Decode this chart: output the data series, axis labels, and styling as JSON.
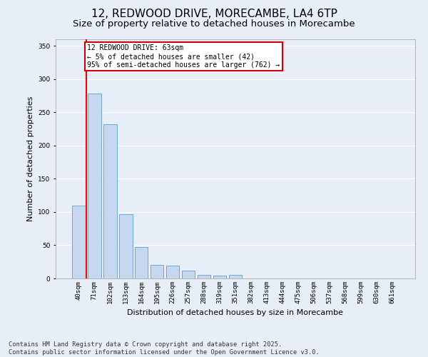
{
  "title_line1": "12, REDWOOD DRIVE, MORECAMBE, LA4 6TP",
  "title_line2": "Size of property relative to detached houses in Morecambe",
  "xlabel": "Distribution of detached houses by size in Morecambe",
  "ylabel": "Number of detached properties",
  "categories": [
    "40sqm",
    "71sqm",
    "102sqm",
    "133sqm",
    "164sqm",
    "195sqm",
    "226sqm",
    "257sqm",
    "288sqm",
    "319sqm",
    "351sqm",
    "382sqm",
    "413sqm",
    "444sqm",
    "475sqm",
    "506sqm",
    "537sqm",
    "568sqm",
    "599sqm",
    "630sqm",
    "661sqm"
  ],
  "values": [
    110,
    278,
    232,
    97,
    47,
    20,
    19,
    12,
    5,
    4,
    5,
    0,
    0,
    0,
    0,
    0,
    0,
    0,
    0,
    0,
    0
  ],
  "bar_color": "#c5d8f0",
  "bar_edge_color": "#6aaad4",
  "red_line_x": 0.5,
  "annotation_text": "12 REDWOOD DRIVE: 63sqm\n← 5% of detached houses are smaller (42)\n95% of semi-detached houses are larger (762) →",
  "annotation_box_color": "#ffffff",
  "annotation_box_edge": "#cc0000",
  "ylim": [
    0,
    360
  ],
  "yticks": [
    0,
    50,
    100,
    150,
    200,
    250,
    300,
    350
  ],
  "footer_line1": "Contains HM Land Registry data © Crown copyright and database right 2025.",
  "footer_line2": "Contains public sector information licensed under the Open Government Licence v3.0.",
  "bg_color": "#e8eef8",
  "grid_color": "#ffffff",
  "title_fontsize": 11,
  "subtitle_fontsize": 9.5,
  "axis_label_fontsize": 8,
  "tick_fontsize": 6.5,
  "footer_fontsize": 6.2,
  "annot_fontsize": 7.0
}
